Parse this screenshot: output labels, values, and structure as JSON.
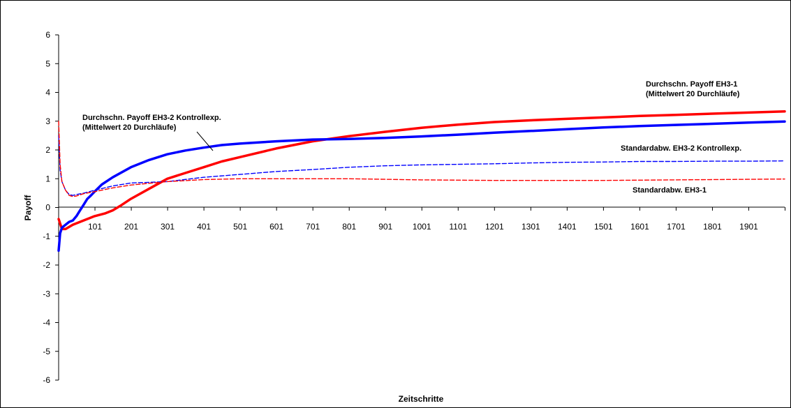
{
  "chart_data": {
    "type": "line",
    "xlabel": "Zeitschritte",
    "ylabel": "Payoff",
    "xlim": [
      1,
      2000
    ],
    "ylim": [
      -6,
      6
    ],
    "y_ticks": [
      "-6",
      "-5",
      "-4",
      "-3",
      "-2",
      "-1",
      "0",
      "1",
      "2",
      "3",
      "4",
      "5",
      "6"
    ],
    "x_ticks": [
      "101",
      "201",
      "301",
      "401",
      "501",
      "601",
      "701",
      "801",
      "901",
      "1001",
      "1101",
      "1201",
      "1301",
      "1401",
      "1501",
      "1601",
      "1701",
      "1801",
      "1901"
    ],
    "grid": false,
    "legend": "none",
    "series": [
      {
        "key": "mean_eh3_1",
        "color": "#ff0000",
        "dash": "solid",
        "x": [
          1,
          10,
          20,
          40,
          60,
          80,
          100,
          130,
          150,
          170,
          200,
          250,
          300,
          350,
          400,
          450,
          500,
          600,
          700,
          800,
          900,
          1000,
          1100,
          1200,
          1300,
          1400,
          1500,
          1600,
          1700,
          1800,
          1900,
          2000
        ],
        "y": [
          -0.4,
          -0.75,
          -0.75,
          -0.6,
          -0.5,
          -0.4,
          -0.3,
          -0.2,
          -0.1,
          0.05,
          0.3,
          0.65,
          1.0,
          1.2,
          1.4,
          1.6,
          1.75,
          2.05,
          2.3,
          2.48,
          2.63,
          2.77,
          2.88,
          2.97,
          3.03,
          3.08,
          3.13,
          3.18,
          3.22,
          3.26,
          3.3,
          3.34
        ]
      },
      {
        "key": "mean_eh3_2",
        "color": "#0000ff",
        "dash": "solid",
        "x": [
          1,
          5,
          10,
          20,
          30,
          40,
          50,
          60,
          70,
          80,
          90,
          100,
          120,
          150,
          200,
          250,
          300,
          350,
          400,
          450,
          500,
          600,
          700,
          800,
          900,
          1000,
          1100,
          1200,
          1300,
          1400,
          1500,
          1600,
          1700,
          1800,
          1900,
          2000
        ],
        "y": [
          -1.5,
          -0.9,
          -0.7,
          -0.6,
          -0.5,
          -0.45,
          -0.3,
          -0.1,
          0.1,
          0.3,
          0.42,
          0.55,
          0.8,
          1.05,
          1.4,
          1.65,
          1.85,
          1.98,
          2.08,
          2.17,
          2.22,
          2.3,
          2.36,
          2.38,
          2.42,
          2.47,
          2.53,
          2.6,
          2.66,
          2.72,
          2.78,
          2.83,
          2.87,
          2.91,
          2.95,
          2.99
        ]
      },
      {
        "key": "std_eh3_2",
        "color": "#0000ff",
        "dash": "dashed",
        "x": [
          1,
          5,
          10,
          20,
          30,
          40,
          50,
          70,
          100,
          150,
          200,
          300,
          400,
          500,
          600,
          700,
          800,
          900,
          1000,
          1100,
          1200,
          1300,
          1400,
          1500,
          1600,
          1700,
          1800,
          1900,
          2000
        ],
        "y": [
          2.5,
          1.3,
          0.9,
          0.6,
          0.45,
          0.42,
          0.45,
          0.5,
          0.6,
          0.75,
          0.85,
          0.9,
          1.05,
          1.15,
          1.25,
          1.32,
          1.4,
          1.45,
          1.48,
          1.5,
          1.52,
          1.55,
          1.57,
          1.58,
          1.6,
          1.6,
          1.61,
          1.61,
          1.62
        ]
      },
      {
        "key": "std_eh3_1",
        "color": "#ff0000",
        "dash": "dashed",
        "x": [
          1,
          5,
          10,
          20,
          30,
          40,
          50,
          70,
          100,
          150,
          200,
          300,
          400,
          500,
          600,
          700,
          800,
          900,
          1000,
          1100,
          1200,
          1300,
          1400,
          1500,
          1600,
          1700,
          1800,
          1900,
          2000
        ],
        "y": [
          3.0,
          1.5,
          0.9,
          0.6,
          0.42,
          0.38,
          0.4,
          0.48,
          0.55,
          0.68,
          0.78,
          0.9,
          0.97,
          1.0,
          1.0,
          1.0,
          1.0,
          0.98,
          0.96,
          0.95,
          0.94,
          0.94,
          0.94,
          0.94,
          0.95,
          0.96,
          0.97,
          0.98,
          0.99
        ]
      }
    ],
    "annotations": [
      {
        "key": "ann_mean_eh3_1",
        "lines": [
          "Durchschn. Payoff EH3-1",
          "(Mittelwert 20 Durchläufe)"
        ]
      },
      {
        "key": "ann_mean_eh3_2",
        "lines": [
          "Durchschn. Payoff EH3-2 Kontrollexp.",
          "(Mittelwert 20 Durchläufe)"
        ]
      },
      {
        "key": "ann_std_eh3_2",
        "lines": [
          "Standardabw. EH3-2 Kontrollexp."
        ]
      },
      {
        "key": "ann_std_eh3_1",
        "lines": [
          "Standardabw. EH3-1"
        ]
      }
    ]
  }
}
